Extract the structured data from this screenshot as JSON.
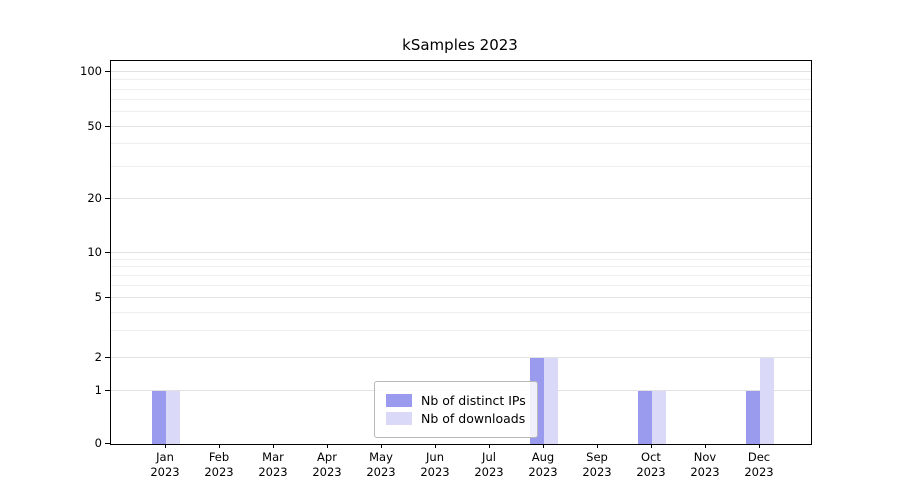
{
  "chart_data": {
    "type": "bar",
    "title": "kSamples 2023",
    "categories": [
      "Jan\n2023",
      "Feb\n2023",
      "Mar\n2023",
      "Apr\n2023",
      "May\n2023",
      "Jun\n2023",
      "Jul\n2023",
      "Aug\n2023",
      "Sep\n2023",
      "Oct\n2023",
      "Nov\n2023",
      "Dec\n2023"
    ],
    "series": [
      {
        "name": "Nb of distinct IPs",
        "color": "#9a9aee",
        "values": [
          1,
          0,
          0,
          0,
          0,
          0,
          0,
          2,
          0,
          1,
          0,
          1
        ]
      },
      {
        "name": "Nb of downloads",
        "color": "#dadaf8",
        "values": [
          1,
          0,
          0,
          0,
          0,
          0,
          0,
          2,
          0,
          1,
          0,
          2
        ]
      }
    ],
    "yticks": [
      0,
      1,
      2,
      5,
      10,
      20,
      50,
      100
    ],
    "minor_gridlines": [
      3,
      4,
      6,
      7,
      8,
      9,
      30,
      40,
      60,
      70,
      80,
      90
    ],
    "scale": "symlog",
    "ylim": [
      0,
      110
    ],
    "grid": true,
    "legend_position": "lower center"
  }
}
